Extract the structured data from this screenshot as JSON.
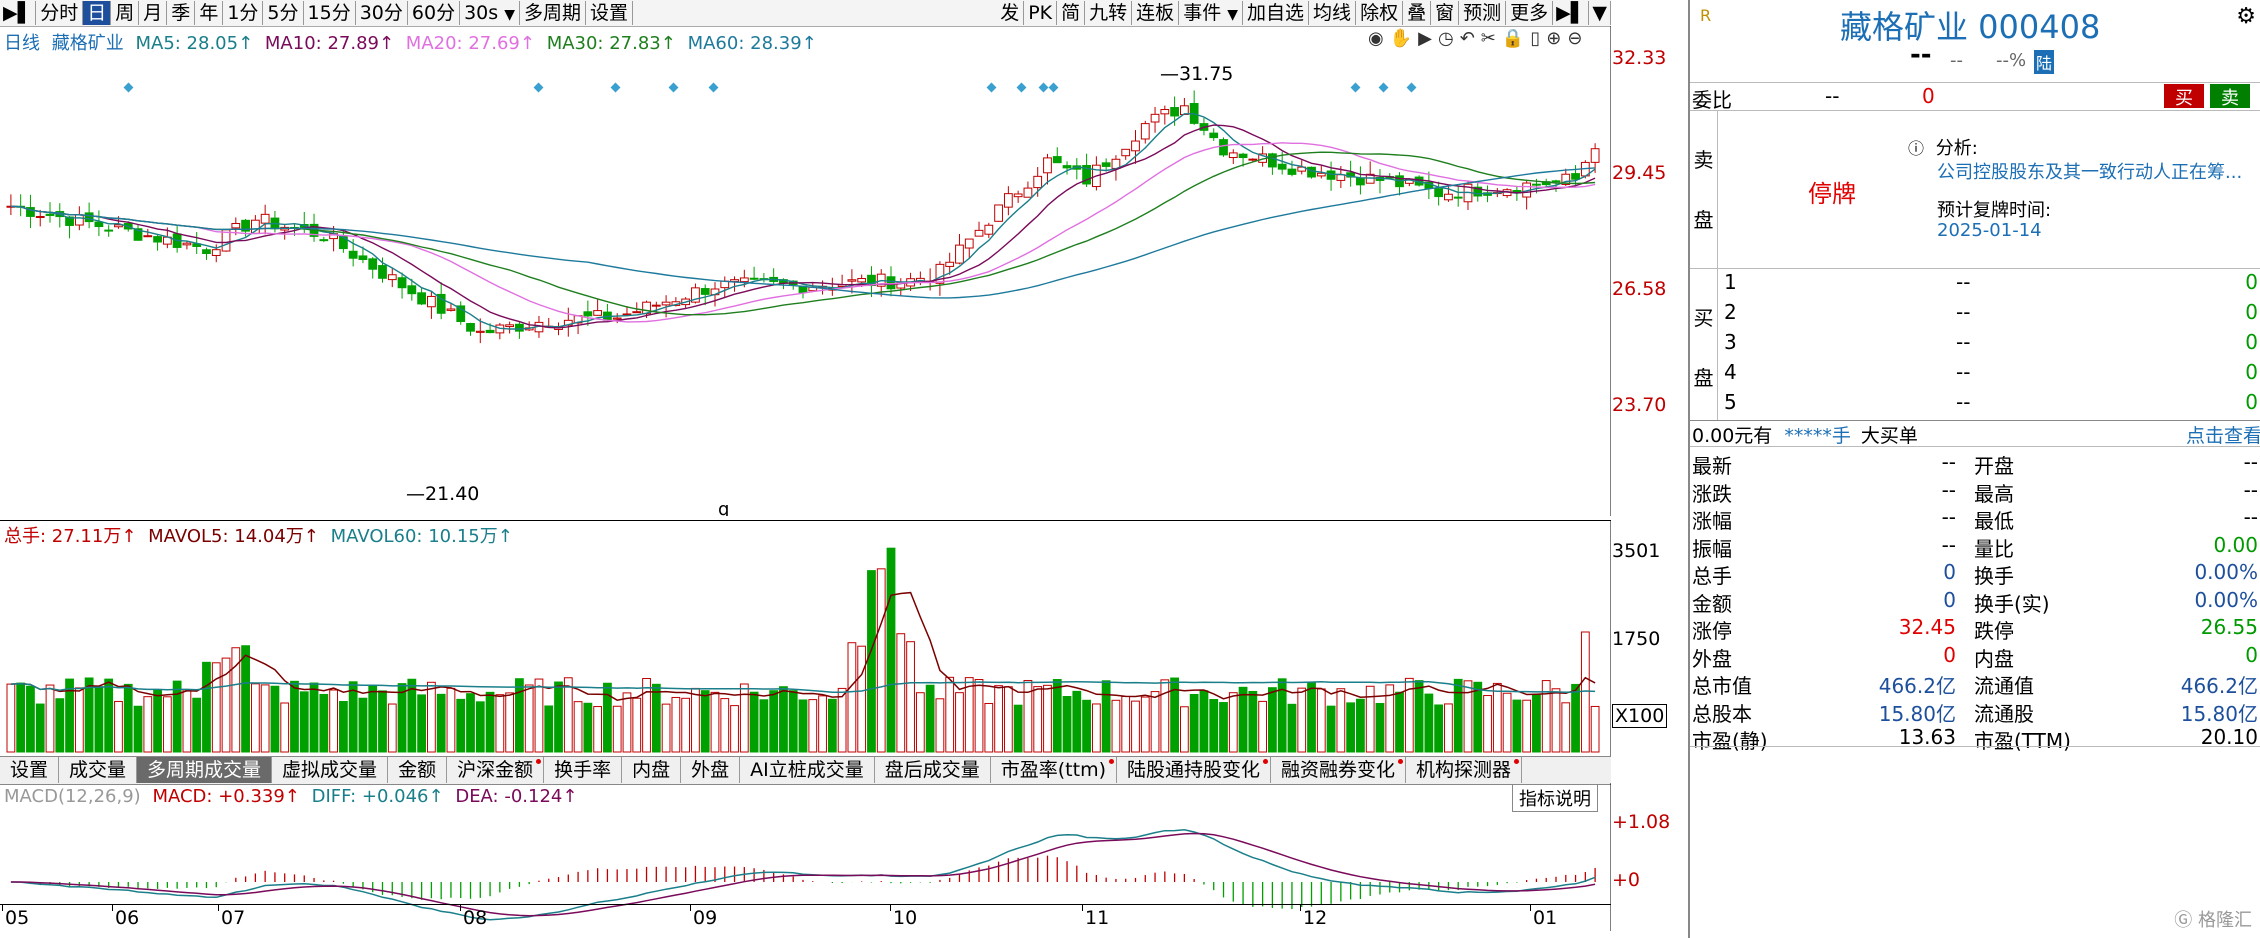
{
  "toolbar": {
    "left_items": [
      "分时",
      "日",
      "周",
      "月",
      "季",
      "年",
      "1分",
      "5分",
      "15分",
      "30分",
      "60分",
      "30s",
      "多周期",
      "设置"
    ],
    "selected": "日",
    "right_items": [
      "发",
      "PK",
      "简",
      "九转",
      "连板",
      "事件",
      "加自选",
      "均线",
      "除权",
      "叠",
      "窗",
      "预测",
      "更多"
    ]
  },
  "kline_header": {
    "period": "日线",
    "name": "藏格矿业",
    "ma5": "MA5: 28.05↑",
    "ma10": "MA10: 27.89↑",
    "ma20": "MA20: 27.69↑",
    "ma30": "MA30: 27.83↑",
    "ma60": "MA60: 28.39↑"
  },
  "price_axis": [
    "32.33",
    "29.45",
    "26.58",
    "23.70"
  ],
  "annotations": {
    "high": "31.75",
    "low": "21.40",
    "q_marker": "q"
  },
  "volume_header": {
    "total": "总手: 27.11万↑",
    "mavol5": "MAVOL5: 14.04万↑",
    "mavol60": "MAVOL60: 10.15万↑"
  },
  "volume_axis": [
    "3501",
    "1750"
  ],
  "volume_unit": "X100",
  "indicator_tabs": [
    {
      "label": "设置",
      "dot": false
    },
    {
      "label": "成交量",
      "dot": false
    },
    {
      "label": "多周期成交量",
      "dot": false,
      "selected": true
    },
    {
      "label": "虚拟成交量",
      "dot": false
    },
    {
      "label": "金额",
      "dot": false
    },
    {
      "label": "沪深金额",
      "dot": true
    },
    {
      "label": "换手率",
      "dot": false
    },
    {
      "label": "内盘",
      "dot": false
    },
    {
      "label": "外盘",
      "dot": false
    },
    {
      "label": "AI立桩成交量",
      "dot": false
    },
    {
      "label": "盘后成交量",
      "dot": false
    },
    {
      "label": "市盈率(ttm)",
      "dot": true
    },
    {
      "label": "陆股通持股变化",
      "dot": true
    },
    {
      "label": "融资融券变化",
      "dot": true
    },
    {
      "label": "机构探测器",
      "dot": true
    }
  ],
  "macd_header": {
    "name": "MACD(12,26,9)",
    "macd": "MACD: +0.339↑",
    "diff": "DIFF: +0.046↑",
    "dea": "DEA: -0.124↑",
    "help_button": "指标说明"
  },
  "macd_axis": [
    "+1.08",
    "+0"
  ],
  "months": [
    "05",
    "06",
    "07",
    "08",
    "09",
    "10",
    "11",
    "12",
    "01"
  ],
  "quote_panel": {
    "title": "藏格矿业 000408",
    "price": "--",
    "change": "--",
    "change_pct": "--%",
    "badge": "陆",
    "weibi_label": "委比",
    "weibi_value": "--",
    "weicha_value": "0",
    "buy_btn": "买",
    "sell_btn": "卖",
    "sell_label": "卖\n盘",
    "status": "停牌",
    "analysis_label": "分析:",
    "analysis_text": "公司控股股东及其一致行动人正在筹...",
    "resume_label": "预计复牌时间:",
    "resume_date": "2025-01-14",
    "buy_label": "买\n盘",
    "bids": [
      {
        "n": "1",
        "p": "--",
        "v": "0"
      },
      {
        "n": "2",
        "p": "--",
        "v": "0"
      },
      {
        "n": "3",
        "p": "--",
        "v": "0"
      },
      {
        "n": "4",
        "p": "--",
        "v": "0"
      },
      {
        "n": "5",
        "p": "--",
        "v": "0"
      }
    ],
    "bar_left": "0.00元有",
    "bar_stars": "*****手",
    "bar_big": "大买单",
    "bar_right": "点击查看",
    "stats": [
      [
        "最新",
        "--",
        "开盘",
        "--"
      ],
      [
        "涨跌",
        "--",
        "最高",
        "--"
      ],
      [
        "涨幅",
        "--",
        "最低",
        "--"
      ],
      [
        "振幅",
        "--",
        "量比",
        "0.00"
      ],
      [
        "总手",
        "0",
        "换手",
        "0.00%"
      ],
      [
        "金额",
        "0",
        "换手(实)",
        "0.00%"
      ],
      [
        "涨停",
        "32.45",
        "跌停",
        "26.55"
      ],
      [
        "外盘",
        "0",
        "内盘",
        "0"
      ],
      [
        "总市值",
        "466.2亿",
        "流通值",
        "466.2亿"
      ],
      [
        "总股本",
        "15.80亿",
        "流通股",
        "15.80亿"
      ],
      [
        "市盈(静)",
        "13.63",
        "市盈(TTM)",
        "20.10"
      ]
    ]
  },
  "watermark": "格隆汇",
  "colors": {
    "up": "#c00000",
    "down": "#00a000",
    "ma5": "#1a7f8a",
    "ma10": "#7a0a5a",
    "ma20": "#e070e0",
    "ma30": "#1f7f1f",
    "ma60": "#1e7a9c"
  }
}
